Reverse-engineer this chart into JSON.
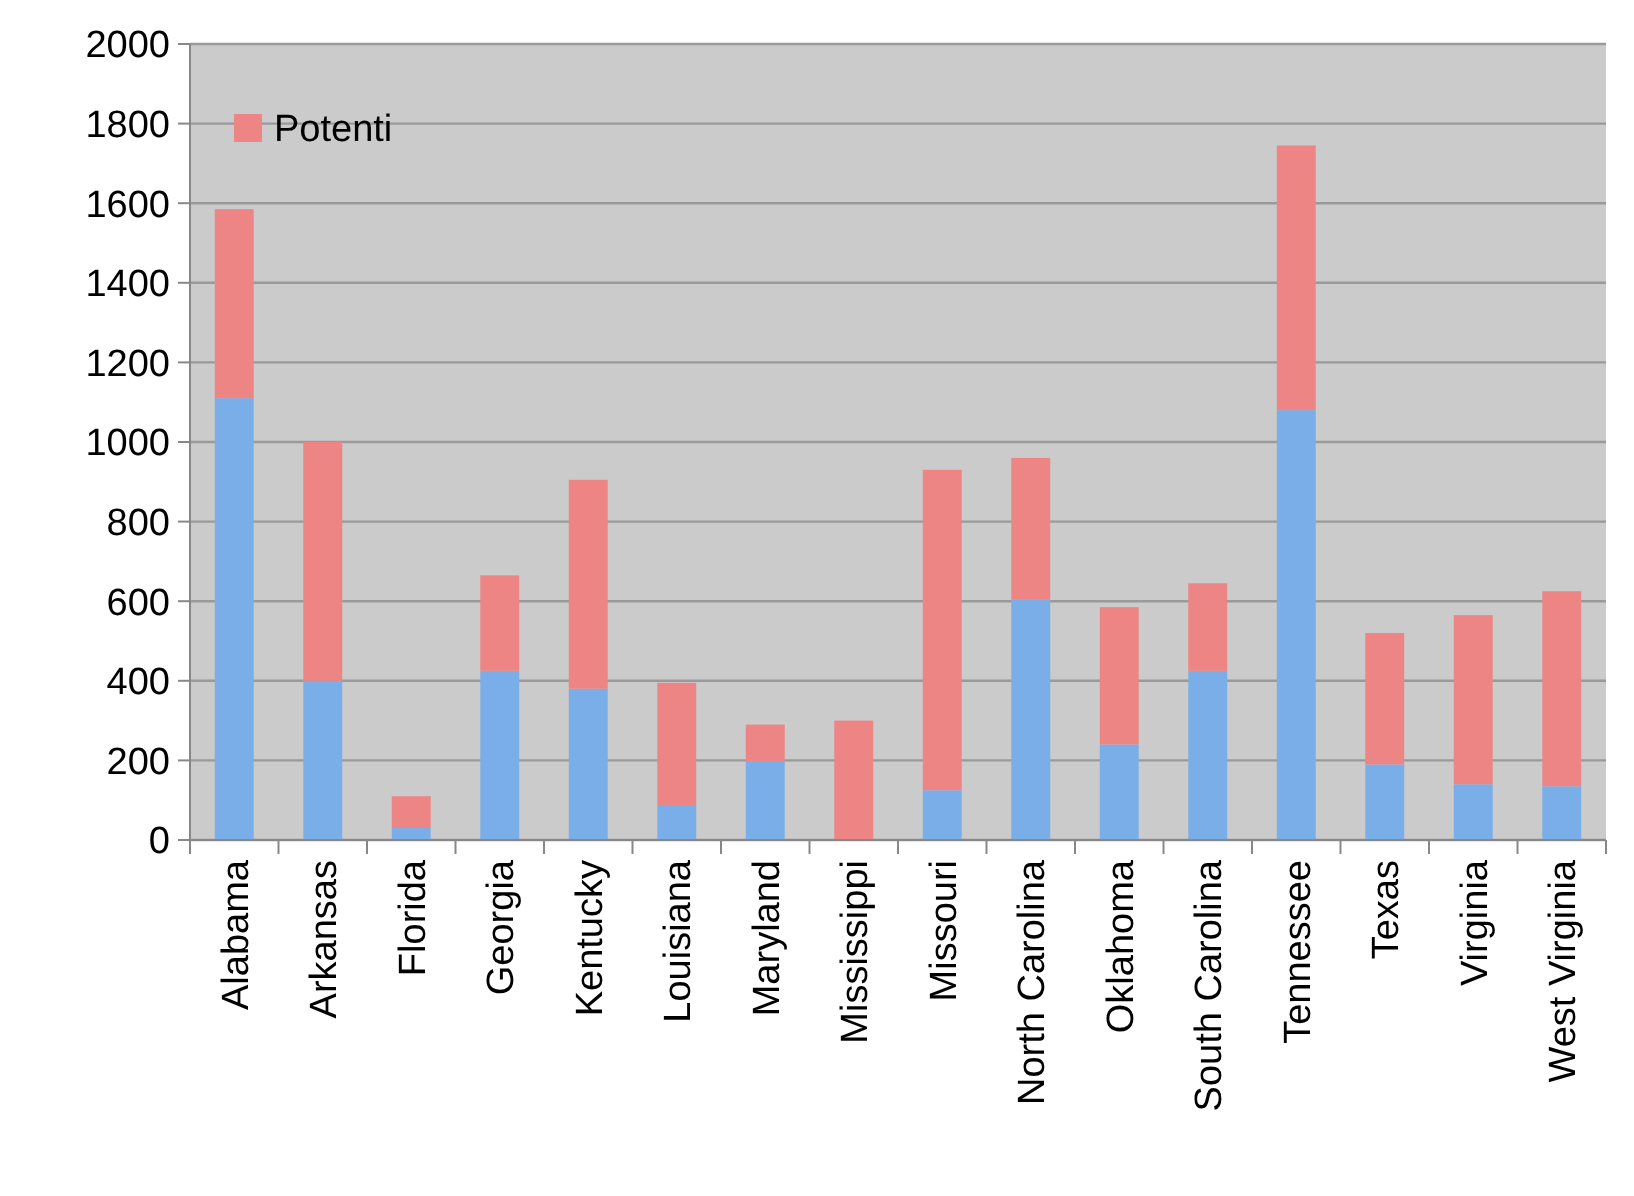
{
  "chart_data": {
    "type": "bar",
    "stacked": true,
    "categories": [
      "Alabama",
      "Arkansas",
      "Florida",
      "Georgia",
      "Kentucky",
      "Louisiana",
      "Maryland",
      "Mississippi",
      "Missouri",
      "North Carolina",
      "Oklahoma",
      "South Carolina",
      "Tennessee",
      "Texas",
      "Virginia",
      "West Virginia"
    ],
    "series": [
      {
        "color": "#7aaee8",
        "values": [
          1110,
          400,
          30,
          425,
          380,
          88,
          198,
          0,
          125,
          605,
          240,
          425,
          1080,
          190,
          140,
          135
        ]
      },
      {
        "name": "Potenti",
        "color": "#ee8585",
        "values": [
          475,
          600,
          80,
          240,
          525,
          307,
          92,
          300,
          805,
          355,
          345,
          220,
          665,
          330,
          425,
          490
        ]
      }
    ],
    "ylim": [
      0,
      2000
    ],
    "yticks": [
      0,
      200,
      400,
      600,
      800,
      1000,
      1200,
      1400,
      1600,
      1800,
      2000
    ],
    "grid": "y",
    "legend": "top left"
  }
}
